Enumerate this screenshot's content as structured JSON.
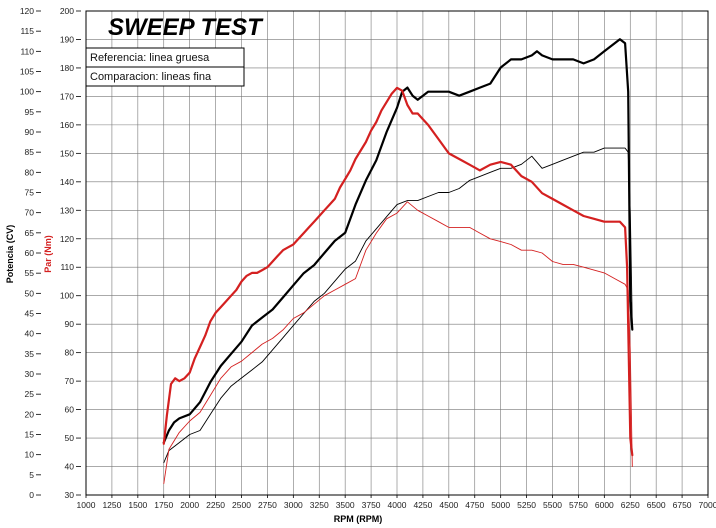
{
  "chart_data": {
    "type": "line",
    "title": "SWEEP TEST",
    "xlabel": "RPM (RPM)",
    "ylabel_left": "Potencia (CV)",
    "ylabel_right": "Par (Nm)",
    "xlim": [
      1000,
      7000
    ],
    "ylim_power": [
      0,
      120
    ],
    "ylim_torque": [
      30,
      200
    ],
    "x_ticks": [
      "1000",
      "1250",
      "1500",
      "1750",
      "2000",
      "2250",
      "2500",
      "2750",
      "3000",
      "3250",
      "3500",
      "3750",
      "4000",
      "4250",
      "4500",
      "4750",
      "5000",
      "5250",
      "5500",
      "5750",
      "6000",
      "6250",
      "6500",
      "6750",
      "7000"
    ],
    "power_ticks": [
      "0",
      "5",
      "10",
      "15",
      "20",
      "25",
      "30",
      "35",
      "40",
      "45",
      "50",
      "55",
      "60",
      "65",
      "70",
      "75",
      "80",
      "85",
      "90",
      "95",
      "100",
      "105",
      "110",
      "115",
      "120"
    ],
    "torque_ticks": [
      "30",
      "40",
      "50",
      "60",
      "70",
      "80",
      "90",
      "100",
      "110",
      "120",
      "130",
      "140",
      "150",
      "160",
      "170",
      "180",
      "190",
      "200"
    ],
    "legend": [
      "Referencia: linea gruesa",
      "Comparacion: lineas fina"
    ],
    "grid": true,
    "colors": {
      "power": "#000000",
      "torque": "#d42020"
    },
    "series": [
      {
        "axis": "power",
        "weight": "thick",
        "x": [
          1750,
          1800,
          1850,
          1900,
          2000,
          2100,
          2200,
          2300,
          2400,
          2500,
          2600,
          2700,
          2800,
          2900,
          3000,
          3100,
          3200,
          3300,
          3400,
          3500,
          3600,
          3700,
          3800,
          3900,
          4000,
          4050,
          4100,
          4150,
          4200,
          4300,
          4400,
          4500,
          4600,
          4700,
          4800,
          4900,
          5000,
          5100,
          5200,
          5300,
          5350,
          5400,
          5500,
          5600,
          5700,
          5800,
          5900,
          6000,
          6100,
          6150,
          6200,
          6230,
          6250,
          6270
        ],
        "y": [
          13,
          16,
          18,
          19,
          20,
          23,
          28,
          32,
          35,
          38,
          42,
          44,
          46,
          49,
          52,
          55,
          57,
          60,
          63,
          65,
          72,
          78,
          83,
          90,
          96,
          100,
          101,
          99,
          98,
          100,
          100,
          100,
          99,
          100,
          101,
          102,
          106,
          108,
          108,
          109,
          110,
          109,
          108,
          108,
          108,
          107,
          108,
          110,
          112,
          113,
          112,
          100,
          48,
          41
        ]
      },
      {
        "axis": "power",
        "weight": "thin",
        "x": [
          1750,
          1800,
          1900,
          2000,
          2100,
          2200,
          2300,
          2400,
          2500,
          2600,
          2700,
          2800,
          2900,
          3000,
          3100,
          3200,
          3300,
          3400,
          3500,
          3600,
          3700,
          3800,
          3900,
          4000,
          4100,
          4200,
          4300,
          4400,
          4500,
          4600,
          4700,
          4800,
          4900,
          5000,
          5100,
          5200,
          5300,
          5400,
          5500,
          5600,
          5700,
          5800,
          5900,
          6000,
          6100,
          6200,
          6230,
          6250,
          6270
        ],
        "y": [
          8,
          11,
          13,
          15,
          16,
          20,
          24,
          27,
          29,
          31,
          33,
          36,
          39,
          42,
          45,
          48,
          50,
          53,
          56,
          58,
          63,
          66,
          69,
          72,
          73,
          73,
          74,
          75,
          75,
          76,
          78,
          79,
          80,
          81,
          81,
          82,
          84,
          81,
          82,
          83,
          84,
          85,
          85,
          86,
          86,
          86,
          85,
          70,
          42
        ]
      },
      {
        "axis": "torque",
        "weight": "thick",
        "x": [
          1750,
          1780,
          1820,
          1860,
          1900,
          1950,
          2000,
          2050,
          2100,
          2150,
          2200,
          2250,
          2300,
          2350,
          2400,
          2450,
          2500,
          2550,
          2600,
          2650,
          2700,
          2750,
          2800,
          2850,
          2900,
          2950,
          3000,
          3050,
          3100,
          3150,
          3200,
          3250,
          3300,
          3350,
          3400,
          3450,
          3500,
          3550,
          3600,
          3650,
          3700,
          3750,
          3800,
          3850,
          3900,
          3950,
          4000,
          4050,
          4100,
          4150,
          4200,
          4250,
          4300,
          4400,
          4500,
          4600,
          4700,
          4800,
          4900,
          5000,
          5100,
          5200,
          5300,
          5400,
          5500,
          5600,
          5700,
          5800,
          5900,
          6000,
          6100,
          6150,
          6200,
          6220,
          6250,
          6270
        ],
        "y": [
          48,
          58,
          69,
          71,
          70,
          71,
          73,
          78,
          82,
          86,
          91,
          94,
          96,
          98,
          100,
          102,
          105,
          107,
          108,
          108,
          109,
          110,
          112,
          114,
          116,
          117,
          118,
          120,
          122,
          124,
          126,
          128,
          130,
          132,
          134,
          138,
          141,
          144,
          148,
          151,
          154,
          158,
          161,
          165,
          168,
          171,
          173,
          172,
          167,
          164,
          164,
          162,
          160,
          155,
          150,
          148,
          146,
          144,
          146,
          147,
          146,
          142,
          140,
          136,
          134,
          132,
          130,
          128,
          127,
          126,
          126,
          126,
          124,
          110,
          50,
          44
        ]
      },
      {
        "axis": "torque",
        "weight": "thin",
        "x": [
          1750,
          1800,
          1900,
          2000,
          2100,
          2200,
          2300,
          2400,
          2500,
          2600,
          2700,
          2800,
          2900,
          3000,
          3100,
          3200,
          3300,
          3400,
          3500,
          3600,
          3700,
          3800,
          3900,
          4000,
          4100,
          4200,
          4300,
          4400,
          4500,
          4600,
          4700,
          4800,
          4900,
          5000,
          5100,
          5200,
          5300,
          5400,
          5500,
          5600,
          5700,
          5800,
          5900,
          6000,
          6100,
          6200,
          6230,
          6250,
          6270
        ],
        "y": [
          34,
          46,
          52,
          56,
          59,
          65,
          71,
          75,
          77,
          80,
          83,
          85,
          88,
          92,
          94,
          97,
          100,
          102,
          104,
          106,
          116,
          122,
          127,
          129,
          133,
          130,
          128,
          126,
          124,
          124,
          124,
          122,
          120,
          119,
          118,
          116,
          116,
          115,
          112,
          111,
          111,
          110,
          109,
          108,
          106,
          104,
          102,
          80,
          40
        ]
      }
    ]
  }
}
